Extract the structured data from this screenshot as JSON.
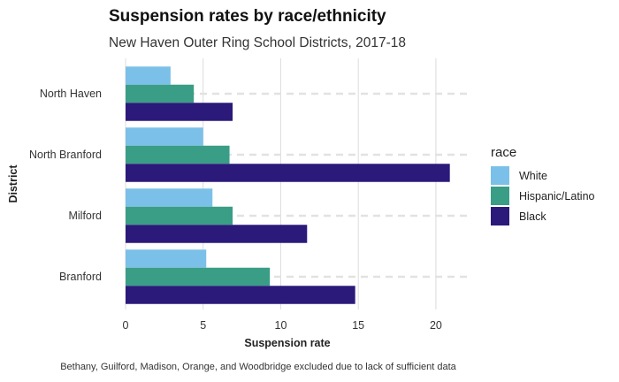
{
  "chart_data": {
    "type": "bar",
    "orientation": "horizontal",
    "title": "Suspension rates by race/ethnicity",
    "subtitle": "New Haven Outer Ring School Districts, 2017-18",
    "xlabel": "Suspension rate",
    "ylabel": "District",
    "caption": "Bethany, Guilford, Madison, Orange, and Woodbridge excluded due to lack of sufficient data",
    "categories": [
      "North Haven",
      "North Branford",
      "Milford",
      "Branford"
    ],
    "xlim": [
      0,
      22
    ],
    "xticks": [
      "0",
      "5",
      "10",
      "15",
      "20"
    ],
    "grid": true,
    "legend": {
      "title": "race",
      "position": "right"
    },
    "series": [
      {
        "name": "White",
        "color": "#7bc0e8",
        "values": [
          2.9,
          5.0,
          5.6,
          5.2
        ]
      },
      {
        "name": "Hispanic/Latino",
        "color": "#3a9d86",
        "values": [
          4.4,
          6.7,
          6.9,
          9.3
        ]
      },
      {
        "name": "Black",
        "color": "#2b1a7a",
        "values": [
          6.9,
          20.9,
          11.7,
          14.8
        ]
      }
    ]
  }
}
